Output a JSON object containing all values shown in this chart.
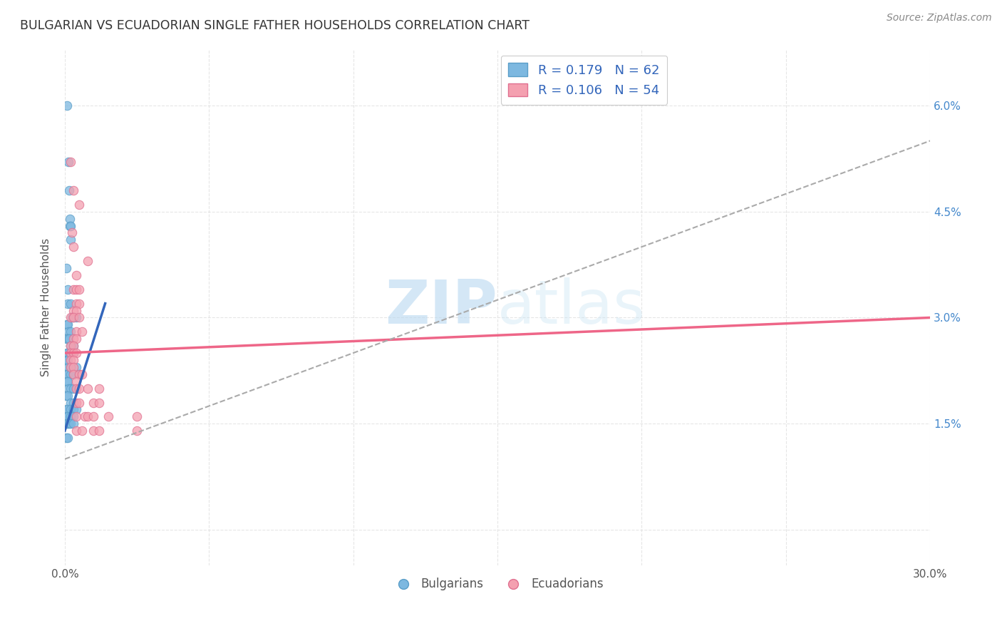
{
  "title": "BULGARIAN VS ECUADORIAN SINGLE FATHER HOUSEHOLDS CORRELATION CHART",
  "source": "Source: ZipAtlas.com",
  "ylabel": "Single Father Households",
  "xlim": [
    0.0,
    0.3
  ],
  "ylim": [
    -0.005,
    0.068
  ],
  "bg_color": "#ffffff",
  "grid_color": "#e0e0e0",
  "watermark": "ZIPatlas",
  "blue_color": "#7db8e0",
  "blue_edge": "#5a9ec8",
  "pink_color": "#f4a0b0",
  "pink_edge": "#e07090",
  "blue_line_color": "#3366bb",
  "pink_line_color": "#ee6688",
  "dashed_line_color": "#aaaaaa",
  "right_tick_color": "#4488cc",
  "blue_scatter": [
    [
      0.0008,
      0.06
    ],
    [
      0.0012,
      0.052
    ],
    [
      0.0015,
      0.048
    ],
    [
      0.0018,
      0.044
    ],
    [
      0.0018,
      0.043
    ],
    [
      0.002,
      0.043
    ],
    [
      0.002,
      0.041
    ],
    [
      0.0005,
      0.037
    ],
    [
      0.001,
      0.034
    ],
    [
      0.001,
      0.032
    ],
    [
      0.002,
      0.032
    ],
    [
      0.0025,
      0.03
    ],
    [
      0.003,
      0.03
    ],
    [
      0.004,
      0.03
    ],
    [
      0.0008,
      0.029
    ],
    [
      0.001,
      0.029
    ],
    [
      0.0012,
      0.028
    ],
    [
      0.002,
      0.028
    ],
    [
      0.0005,
      0.027
    ],
    [
      0.001,
      0.027
    ],
    [
      0.0015,
      0.027
    ],
    [
      0.002,
      0.026
    ],
    [
      0.003,
      0.026
    ],
    [
      0.0008,
      0.025
    ],
    [
      0.001,
      0.025
    ],
    [
      0.002,
      0.025
    ],
    [
      0.003,
      0.025
    ],
    [
      0.0005,
      0.024
    ],
    [
      0.001,
      0.024
    ],
    [
      0.0012,
      0.023
    ],
    [
      0.002,
      0.023
    ],
    [
      0.004,
      0.023
    ],
    [
      0.0005,
      0.022
    ],
    [
      0.001,
      0.022
    ],
    [
      0.002,
      0.022
    ],
    [
      0.003,
      0.022
    ],
    [
      0.005,
      0.022
    ],
    [
      0.0008,
      0.021
    ],
    [
      0.001,
      0.021
    ],
    [
      0.0012,
      0.02
    ],
    [
      0.002,
      0.02
    ],
    [
      0.003,
      0.02
    ],
    [
      0.0005,
      0.019
    ],
    [
      0.001,
      0.019
    ],
    [
      0.002,
      0.018
    ],
    [
      0.003,
      0.018
    ],
    [
      0.0005,
      0.017
    ],
    [
      0.001,
      0.017
    ],
    [
      0.002,
      0.017
    ],
    [
      0.003,
      0.017
    ],
    [
      0.004,
      0.017
    ],
    [
      0.0008,
      0.016
    ],
    [
      0.001,
      0.016
    ],
    [
      0.002,
      0.016
    ],
    [
      0.003,
      0.016
    ],
    [
      0.0005,
      0.015
    ],
    [
      0.001,
      0.015
    ],
    [
      0.0015,
      0.015
    ],
    [
      0.002,
      0.015
    ],
    [
      0.003,
      0.015
    ],
    [
      0.0005,
      0.013
    ],
    [
      0.001,
      0.013
    ]
  ],
  "pink_scatter": [
    [
      0.002,
      0.052
    ],
    [
      0.003,
      0.048
    ],
    [
      0.005,
      0.046
    ],
    [
      0.0025,
      0.042
    ],
    [
      0.003,
      0.04
    ],
    [
      0.008,
      0.038
    ],
    [
      0.004,
      0.036
    ],
    [
      0.003,
      0.034
    ],
    [
      0.004,
      0.034
    ],
    [
      0.005,
      0.034
    ],
    [
      0.004,
      0.032
    ],
    [
      0.005,
      0.032
    ],
    [
      0.003,
      0.031
    ],
    [
      0.004,
      0.031
    ],
    [
      0.002,
      0.03
    ],
    [
      0.003,
      0.03
    ],
    [
      0.005,
      0.03
    ],
    [
      0.004,
      0.028
    ],
    [
      0.006,
      0.028
    ],
    [
      0.003,
      0.027
    ],
    [
      0.004,
      0.027
    ],
    [
      0.002,
      0.026
    ],
    [
      0.003,
      0.026
    ],
    [
      0.002,
      0.025
    ],
    [
      0.003,
      0.025
    ],
    [
      0.004,
      0.025
    ],
    [
      0.002,
      0.024
    ],
    [
      0.003,
      0.024
    ],
    [
      0.002,
      0.023
    ],
    [
      0.003,
      0.023
    ],
    [
      0.003,
      0.022
    ],
    [
      0.005,
      0.022
    ],
    [
      0.006,
      0.022
    ],
    [
      0.004,
      0.021
    ],
    [
      0.004,
      0.02
    ],
    [
      0.005,
      0.02
    ],
    [
      0.008,
      0.02
    ],
    [
      0.012,
      0.02
    ],
    [
      0.004,
      0.018
    ],
    [
      0.005,
      0.018
    ],
    [
      0.01,
      0.018
    ],
    [
      0.012,
      0.018
    ],
    [
      0.004,
      0.016
    ],
    [
      0.007,
      0.016
    ],
    [
      0.008,
      0.016
    ],
    [
      0.01,
      0.016
    ],
    [
      0.015,
      0.016
    ],
    [
      0.025,
      0.016
    ],
    [
      0.004,
      0.014
    ],
    [
      0.006,
      0.014
    ],
    [
      0.01,
      0.014
    ],
    [
      0.012,
      0.014
    ],
    [
      0.025,
      0.014
    ]
  ],
  "blue_line": {
    "x0": 0.0,
    "y0": 0.014,
    "x1": 0.014,
    "y1": 0.032
  },
  "pink_line": {
    "x0": 0.0,
    "y0": 0.025,
    "x1": 0.3,
    "y1": 0.03
  },
  "dashed_line": {
    "x0": 0.0,
    "y0": 0.01,
    "x1": 0.3,
    "y1": 0.055
  }
}
